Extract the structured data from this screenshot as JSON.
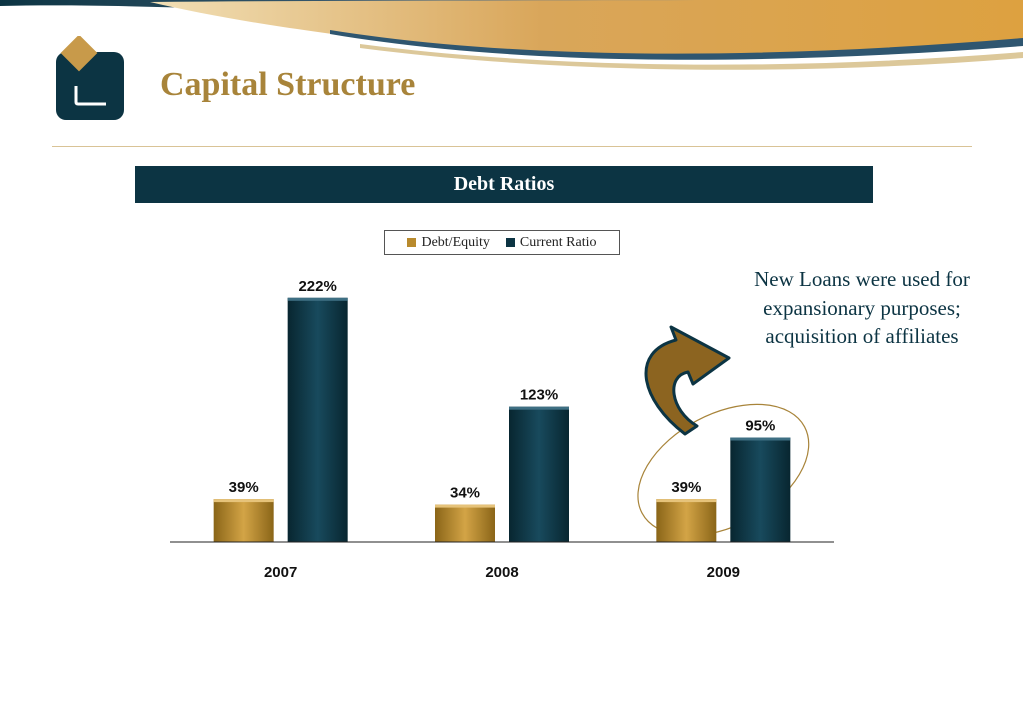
{
  "page": {
    "title": "Capital Structure",
    "chart_header": "Debt Ratios",
    "annotation": "New Loans were used for expansionary purposes; acquisition of affiliates"
  },
  "colors": {
    "title_gold": "#a8843a",
    "navy": "#0c3443",
    "bar_gold": "#b88a2d",
    "highlight_ellipse": "#a8843a",
    "arrow_fill": "#8c6420"
  },
  "icons": {
    "logo": "company-logo",
    "arrow": "curved-arrow-icon"
  },
  "chart_data": {
    "type": "bar",
    "title": "Debt Ratios",
    "categories": [
      "2007",
      "2008",
      "2009"
    ],
    "series": [
      {
        "name": "Debt/Equity",
        "values": [
          39,
          34,
          39
        ],
        "labels": [
          "39%",
          "34%",
          "39%"
        ],
        "color": "#b88a2d"
      },
      {
        "name": "Current Ratio",
        "values": [
          222,
          123,
          95
        ],
        "labels": [
          "222%",
          "123%",
          "95%"
        ],
        "color": "#0c3443"
      }
    ],
    "ylim": [
      0,
      240
    ],
    "unit": "%",
    "grid": false,
    "legend": "top-center",
    "highlight": "2009"
  }
}
